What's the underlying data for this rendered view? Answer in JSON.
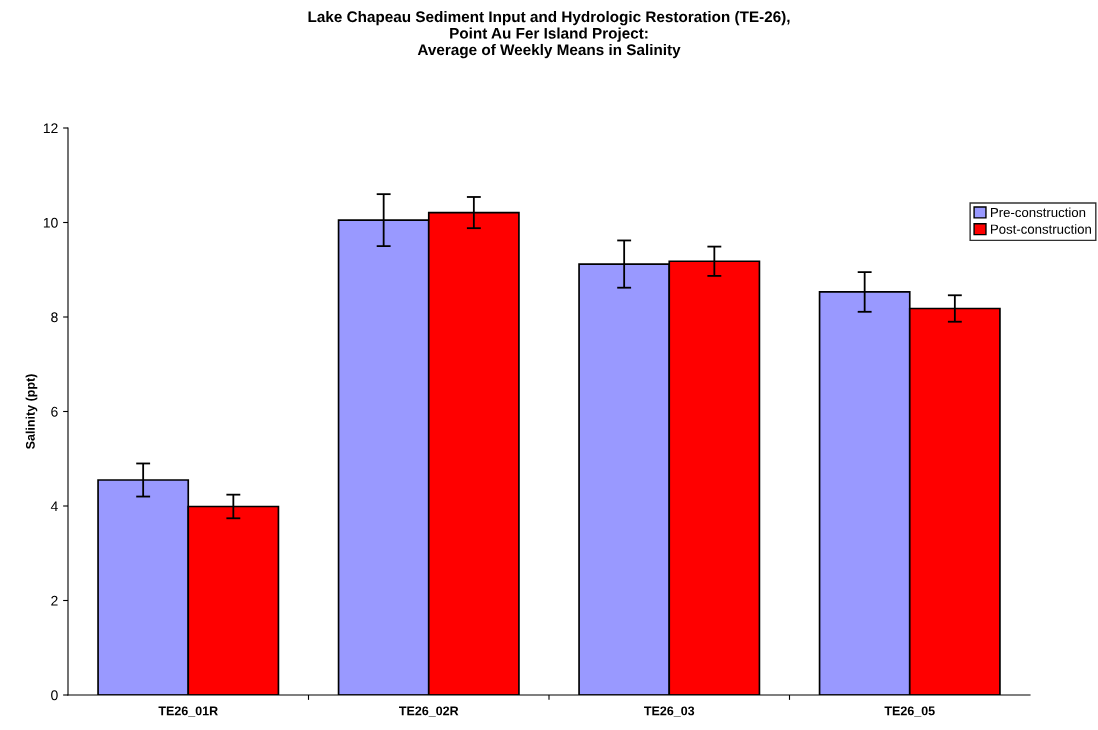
{
  "chart_data": {
    "type": "bar",
    "title": "Lake Chapeau Sediment Input and Hydrologic Restoration (TE-26),\nPoint Au Fer Island Project:\nAverage of Weekly Means in Salinity",
    "ylabel": "Salinity (ppt)",
    "categories": [
      "TE26_01R",
      "TE26_02R",
      "TE26_03",
      "TE26_05"
    ],
    "series": [
      {
        "name": "Pre-construction",
        "color": "#9999ff",
        "values": [
          4.55,
          10.05,
          9.12,
          8.53
        ],
        "errors": [
          0.35,
          0.55,
          0.5,
          0.42
        ]
      },
      {
        "name": "Post-construction",
        "color": "#ff0000",
        "values": [
          3.99,
          10.21,
          9.18,
          8.18
        ],
        "errors": [
          0.25,
          0.33,
          0.31,
          0.28
        ]
      }
    ],
    "ylim": [
      0,
      12
    ],
    "yticks": [
      0,
      2,
      4,
      6,
      8,
      10,
      12
    ],
    "grid": false,
    "legend": "top right"
  }
}
